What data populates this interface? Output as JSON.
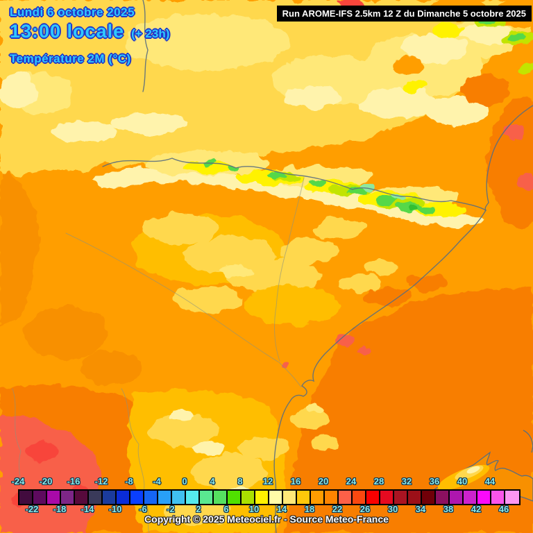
{
  "header": {
    "date_line": "Lundi 6 octobre 2025",
    "time_line": "13:00 locale",
    "offset": "(+ 23h)",
    "variable": "Température 2M (°C)",
    "run_info": "Run AROME-IFS 2.5km 12 Z du Dimanche 5 octobre 2025",
    "text_color": "#2FC9FF",
    "outline_color": "#2236C8"
  },
  "legend": {
    "top_labels": [
      "-24",
      "-20",
      "-16",
      "-12",
      "-8",
      "-4",
      "0",
      "4",
      "8",
      "12",
      "16",
      "20",
      "24",
      "28",
      "32",
      "36",
      "40",
      "44"
    ],
    "bottom_labels": [
      "-22",
      "-18",
      "-14",
      "-10",
      "-6",
      "-2",
      "2",
      "6",
      "10",
      "14",
      "18",
      "22",
      "26",
      "30",
      "34",
      "38",
      "42",
      "46"
    ],
    "swatch_colors": [
      "#420B3E",
      "#5E0A5E",
      "#A80AA8",
      "#7D2687",
      "#570A3C",
      "#3A3A5A",
      "#1B3B9C",
      "#0A2CD8",
      "#0A3FFF",
      "#1565F5",
      "#28A0F8",
      "#40C0F0",
      "#55EAEE",
      "#5AE890",
      "#55E060",
      "#50E000",
      "#AAE000",
      "#FFF200",
      "#FFFCA8",
      "#FFE878",
      "#FFC80A",
      "#FF9C00",
      "#FF8400",
      "#FC6048",
      "#FA4810",
      "#FA0000",
      "#E60A20",
      "#AA1422",
      "#9C1018",
      "#700008",
      "#8C1060",
      "#AE16AE",
      "#CC22CC",
      "#FB0AFB",
      "#FA55EA",
      "#FC96F2"
    ],
    "unit": "°C",
    "label_color": "#8BE9E9",
    "outline_color": "#103048"
  },
  "footer": {
    "copyright": "Copyright © 2025 Meteociel.fr - Source Meteo-France"
  },
  "map": {
    "palette": {
      "base_orange": "#FF9E00",
      "deep_orange": "#F87E00",
      "dark_orange": "#F89000",
      "coral": "#F8604A",
      "red": "#F8453A",
      "yellow": "#FFD84E",
      "gold": "#FFBE00",
      "light_yellow": "#FFE878",
      "cream": "#FFF3AC",
      "bright_yellow": "#FFF200",
      "yellow_green": "#C2E400",
      "green": "#55D848",
      "dark_green": "#30C030",
      "mint": "#8EE8A0",
      "line_gray": "#5A6E7E",
      "river_gray": "#8A927F"
    }
  }
}
